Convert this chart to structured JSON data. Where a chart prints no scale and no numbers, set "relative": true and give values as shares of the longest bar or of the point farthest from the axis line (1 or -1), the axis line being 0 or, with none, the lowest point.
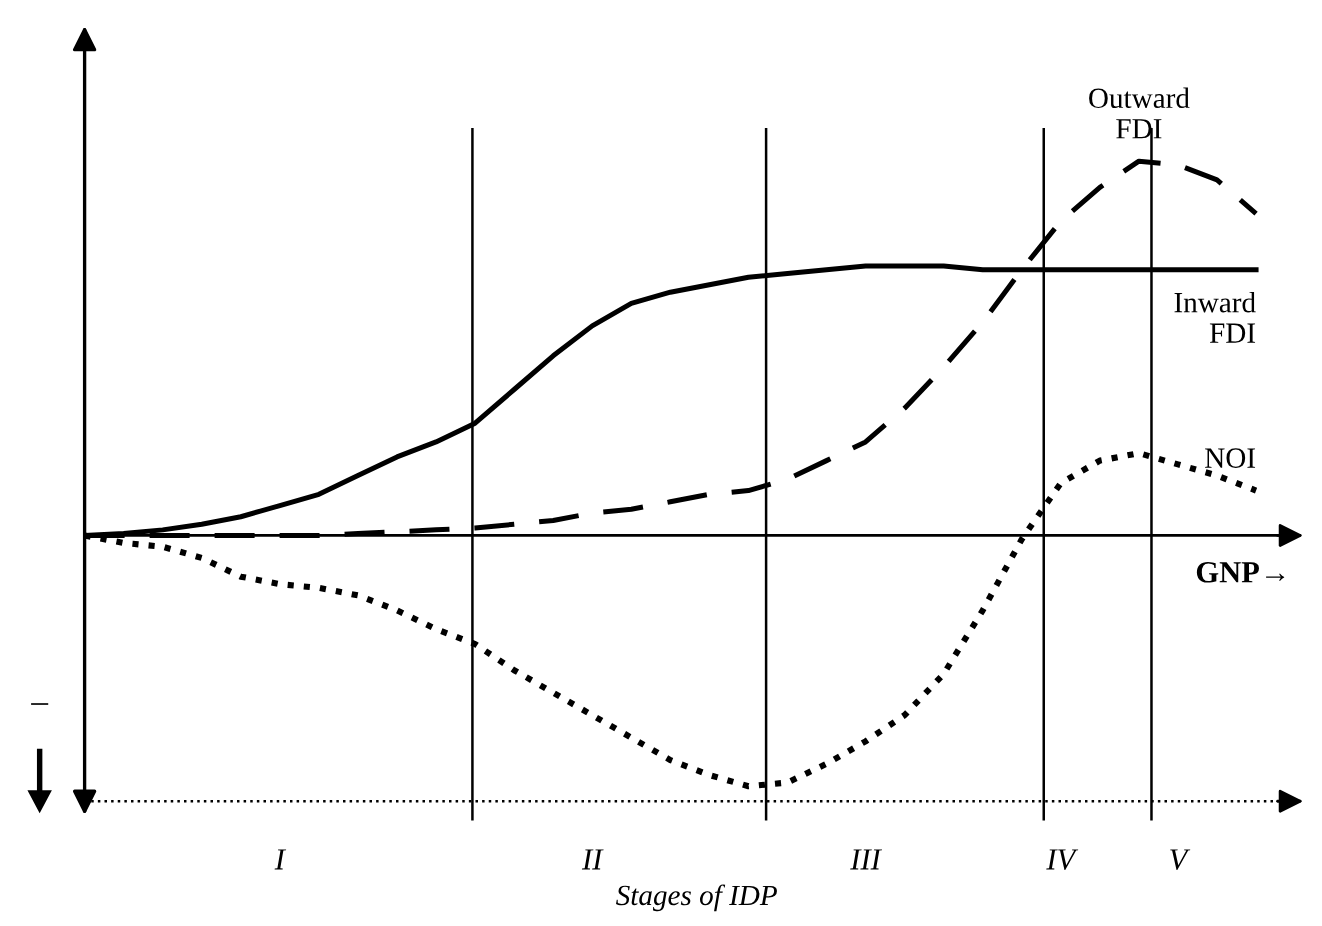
{
  "chart_data": {
    "type": "line",
    "relative": true,
    "xlabel": "GNP→",
    "legend": false,
    "marker": "none",
    "categories": [
      null,
      null,
      null,
      null,
      null,
      "I",
      null,
      null,
      null,
      null,
      null,
      null,
      null,
      "II",
      null,
      null,
      null,
      null,
      null,
      null,
      "III",
      null,
      null,
      null,
      null,
      "IV",
      null,
      null,
      "V",
      null,
      null
    ],
    "series": [
      {
        "name": "Inward\nFDI",
        "color": "#000000",
        "line_style": "solid",
        "values": [
          0,
          0.005,
          0.015,
          0.03,
          0.05,
          0.08,
          0.11,
          0.16,
          0.21,
          0.25,
          0.3,
          0.39,
          0.48,
          0.56,
          0.62,
          0.65,
          0.67,
          0.69,
          0.7,
          0.71,
          0.72,
          0.72,
          0.72,
          0.71,
          0.71,
          0.71,
          0.71,
          0.71,
          0.71,
          0.71,
          0.71
        ]
      },
      {
        "name": "Outward\nFDI",
        "color": "#000000",
        "line_style": "dashed",
        "values": [
          0,
          0,
          0,
          0,
          0,
          0,
          0,
          0.005,
          0.01,
          0.015,
          0.02,
          0.03,
          0.04,
          0.06,
          0.07,
          0.09,
          0.11,
          0.12,
          0.15,
          0.2,
          0.25,
          0.34,
          0.45,
          0.57,
          0.71,
          0.84,
          0.93,
          1.0,
          0.99,
          0.95,
          0.86
        ]
      },
      {
        "name": "NOI",
        "color": "#000000",
        "line_style": "dotted",
        "values": [
          0,
          -0.02,
          -0.03,
          -0.06,
          -0.11,
          -0.13,
          -0.14,
          -0.16,
          -0.2,
          -0.25,
          -0.29,
          -0.36,
          -0.42,
          -0.48,
          -0.54,
          -0.6,
          -0.64,
          -0.67,
          -0.66,
          -0.61,
          -0.55,
          -0.48,
          -0.37,
          -0.2,
          -0.01,
          0.14,
          0.2,
          0.22,
          0.19,
          0.16,
          0.12
        ]
      }
    ],
    "ref_lines": [
      {
        "axis": "y",
        "value": -0.71,
        "line_style": "dotted"
      }
    ],
    "annotations": [
      "Stages of IDP",
      "–"
    ]
  }
}
